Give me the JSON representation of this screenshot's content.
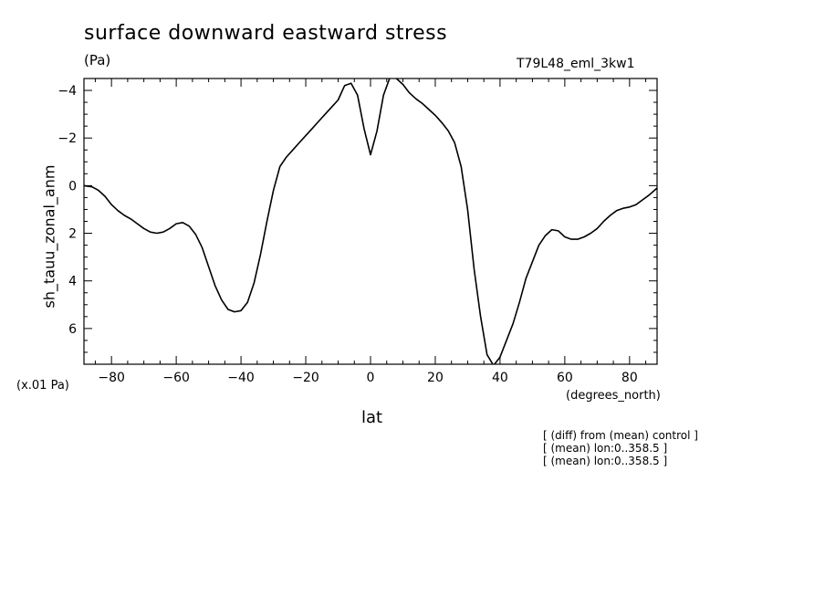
{
  "header": {
    "title": "surface downward eastward stress",
    "units": "(Pa)",
    "run": "T79L48_eml_3kw1",
    "scale_note": "(x.01 Pa)",
    "x_units": "(degrees_north)"
  },
  "notes": [
    "[ (diff) from (mean) control ]",
    "[ (mean) lon:0..358.5 ]",
    "[ (mean) lon:0..358.5 ]"
  ],
  "chart_data": {
    "type": "line",
    "xlabel": "lat",
    "ylabel": "sh_tauu_zonal_anm",
    "xlim": [
      -88.5,
      88.5
    ],
    "ylim": [
      7.5,
      -4.5
    ],
    "y_inverted": true,
    "grid": false,
    "x_ticks": [
      -80,
      -60,
      -40,
      -20,
      0,
      20,
      40,
      60,
      80
    ],
    "y_ticks": [
      -4,
      -2,
      0,
      2,
      4,
      6
    ],
    "series": [
      {
        "color": "#000000",
        "x": [
          -88.5,
          -86,
          -84,
          -82,
          -80,
          -78,
          -76,
          -74,
          -72,
          -70,
          -68,
          -66,
          -64,
          -62,
          -60,
          -58,
          -56,
          -54,
          -52,
          -50,
          -48,
          -46,
          -44,
          -42,
          -40,
          -38,
          -36,
          -34,
          -32,
          -30,
          -28,
          -26,
          -24,
          -22,
          -20,
          -18,
          -16,
          -14,
          -12,
          -10,
          -8,
          -6,
          -4,
          -2,
          0,
          2,
          4,
          6,
          8,
          10,
          12,
          14,
          16,
          18,
          20,
          22,
          24,
          26,
          28,
          30,
          32,
          34,
          36,
          38,
          40,
          42,
          44,
          46,
          48,
          50,
          52,
          54,
          56,
          58,
          60,
          62,
          64,
          66,
          68,
          70,
          72,
          74,
          76,
          78,
          80,
          82,
          84,
          86,
          88.5
        ],
        "y": [
          0,
          0.05,
          0.2,
          0.45,
          0.8,
          1.05,
          1.25,
          1.4,
          1.6,
          1.8,
          1.95,
          2.0,
          1.95,
          1.8,
          1.6,
          1.55,
          1.7,
          2.05,
          2.6,
          3.4,
          4.2,
          4.8,
          5.2,
          5.3,
          5.25,
          4.9,
          4.1,
          2.9,
          1.5,
          0.2,
          -0.8,
          -1.2,
          -1.5,
          -1.8,
          -2.1,
          -2.4,
          -2.7,
          -3.0,
          -3.3,
          -3.6,
          -4.2,
          -4.3,
          -3.8,
          -2.4,
          -1.3,
          -2.3,
          -3.8,
          -4.55,
          -4.5,
          -4.25,
          -3.9,
          -3.65,
          -3.45,
          -3.2,
          -2.95,
          -2.65,
          -2.3,
          -1.8,
          -0.8,
          1.0,
          3.5,
          5.5,
          7.1,
          7.55,
          7.2,
          6.5,
          5.8,
          4.9,
          3.9,
          3.2,
          2.5,
          2.1,
          1.85,
          1.9,
          2.15,
          2.25,
          2.25,
          2.15,
          2.0,
          1.8,
          1.5,
          1.25,
          1.05,
          0.95,
          0.9,
          0.8,
          0.6,
          0.4,
          0.1
        ]
      }
    ]
  }
}
